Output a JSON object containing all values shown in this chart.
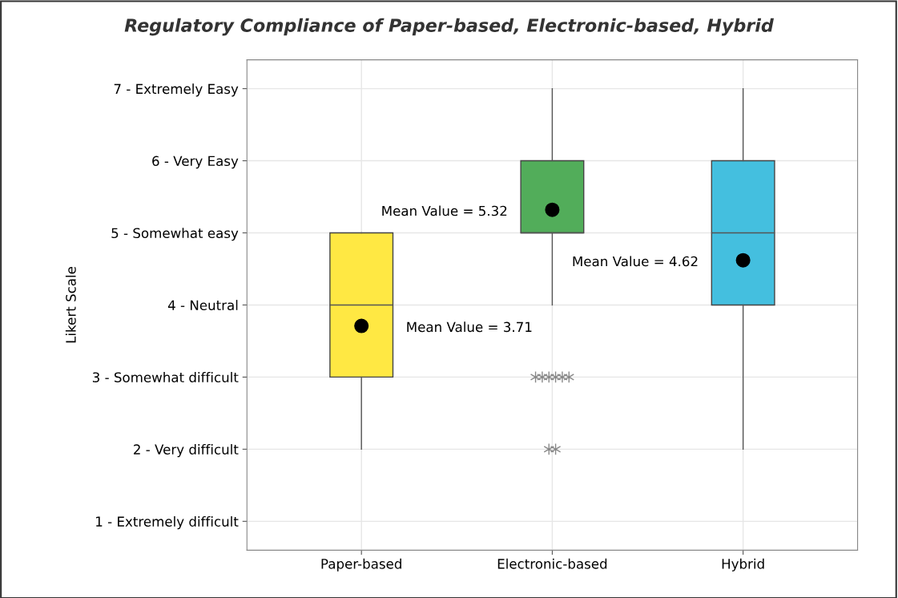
{
  "chart_data": {
    "type": "box",
    "title": "Regulatory Compliance of Paper-based, Electronic-based, Hybrid",
    "ylabel": "Likert Scale",
    "categories": [
      "Paper-based",
      "Electronic-based",
      "Hybrid"
    ],
    "colors": [
      "#ffe843",
      "#52ad5a",
      "#44bfdf"
    ],
    "boxes": [
      {
        "low": 2,
        "q1": 3,
        "median": 4,
        "q3": 5,
        "high": 5,
        "mean": 3.71
      },
      {
        "low": 4,
        "q1": 5,
        "median": 5,
        "q3": 6,
        "high": 7,
        "mean": 5.32,
        "outliers": [
          3,
          3,
          3,
          3,
          3,
          3,
          2,
          2
        ]
      },
      {
        "low": 2,
        "q1": 4,
        "median": 5,
        "q3": 6,
        "high": 7,
        "mean": 4.62
      }
    ],
    "annotations": [
      "Mean Value = 3.71",
      "Mean Value = 5.32",
      "Mean Value = 4.62"
    ],
    "ylim": [
      0.6,
      7.4
    ],
    "yticks": [
      {
        "value": 1,
        "label": "1 - Extremely difficult"
      },
      {
        "value": 2,
        "label": "2 - Very difficult"
      },
      {
        "value": 3,
        "label": "3 - Somewhat difficult"
      },
      {
        "value": 4,
        "label": "4 - Neutral"
      },
      {
        "value": 5,
        "label": "5 - Somewhat easy"
      },
      {
        "value": 6,
        "label": "6 - Very Easy"
      },
      {
        "value": 7,
        "label": "7 - Extremely Easy"
      }
    ],
    "grid": true,
    "legend": false
  }
}
